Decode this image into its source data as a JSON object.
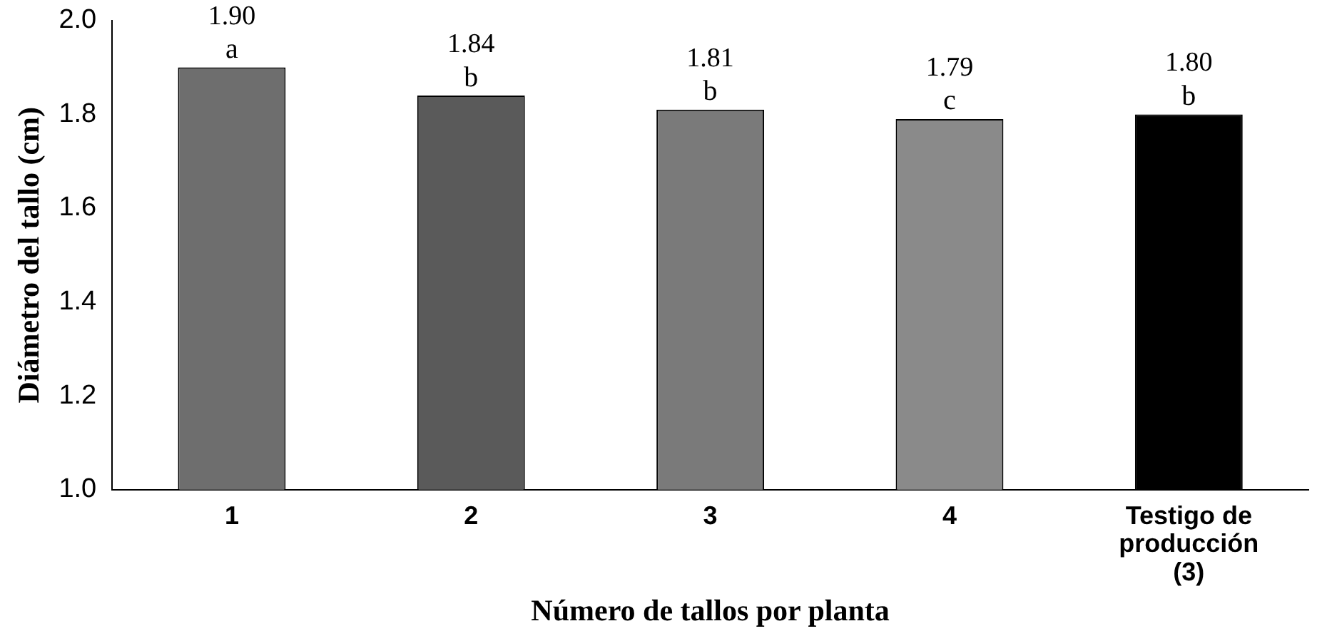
{
  "chart_data": {
    "type": "bar",
    "xlabel": "Número de tallos por planta",
    "ylabel": "Diámetro del tallo (cm)",
    "categories": [
      "1",
      "2",
      "3",
      "4",
      "Testigo de producción (3)"
    ],
    "values": [
      1.9,
      1.84,
      1.81,
      1.79,
      1.8
    ],
    "colors": [
      "#6e6e6e",
      "#5a5a5a",
      "#7a7a7a",
      "#8a8a8a",
      "#000000"
    ],
    "value_labels": [
      "1.90",
      "1.84",
      "1.81",
      "1.79",
      "1.80"
    ],
    "ylim": [
      1.0,
      2.0
    ],
    "yticks": [
      {
        "value": 1.0,
        "label": "1.0"
      },
      {
        "value": 1.2,
        "label": "1.2"
      },
      {
        "value": 1.4,
        "label": "1.4"
      },
      {
        "value": 1.6,
        "label": "1.6"
      },
      {
        "value": 1.8,
        "label": "1.8"
      },
      {
        "value": 2.0,
        "label": "2.0"
      }
    ],
    "grid": false,
    "legend": false,
    "annotations": [
      {
        "text": "a",
        "x": "1",
        "y": 1.9
      },
      {
        "text": "b",
        "x": "2",
        "y": 1.84
      },
      {
        "text": "b",
        "x": "3",
        "y": 1.81
      },
      {
        "text": "c",
        "x": "4",
        "y": 1.79
      },
      {
        "text": "b",
        "x": "Testigo de producción (3)",
        "y": 1.8
      }
    ]
  }
}
